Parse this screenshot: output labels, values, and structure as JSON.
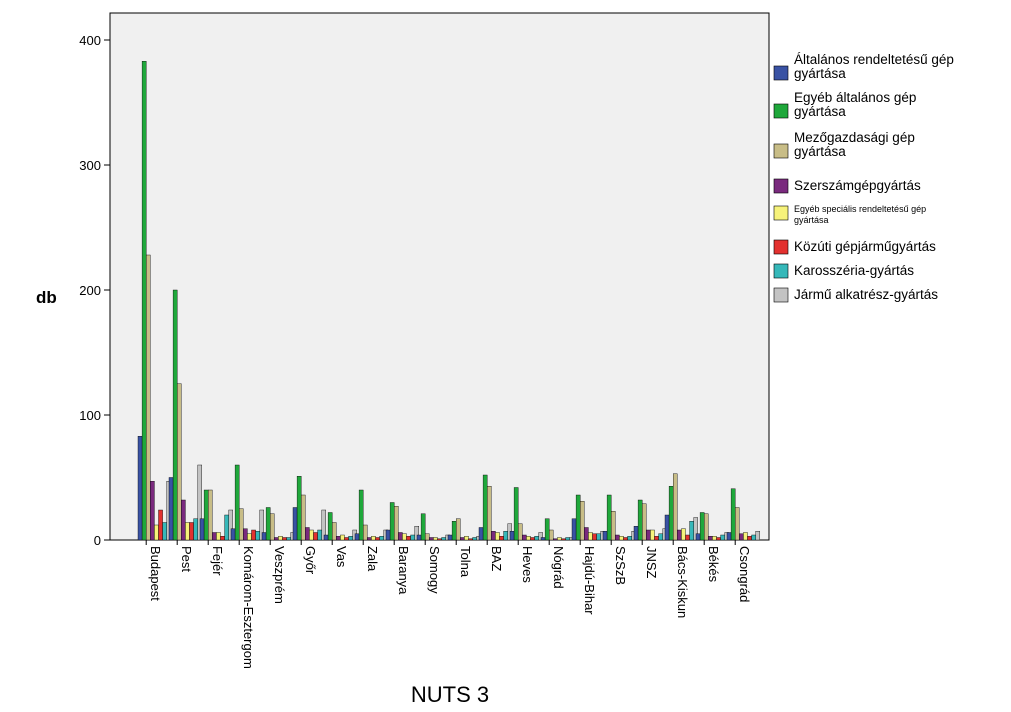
{
  "chart_data": {
    "type": "bar",
    "xlabel": "NUTS 3",
    "ylabel": "db",
    "ylim": [
      0,
      430
    ],
    "yticks": [
      0,
      100,
      200,
      300,
      400
    ],
    "grid": false,
    "legend_position": "right",
    "categories": [
      "Budapest",
      "Pest",
      "Fejér",
      "Komárom-Esztergom",
      "Veszprém",
      "Győr",
      "Vas",
      "Zala",
      "Baranya",
      "Somogy",
      "Tolna",
      "BAZ",
      "Heves",
      "Nógrád",
      "Hajdú-Bihar",
      "SzSzB",
      "JNSZ",
      "Bács-Kiskun",
      "Békés",
      "Csongrád"
    ],
    "series": [
      {
        "name": "Általános rendeltetésű gép gyártása",
        "color": "#3952a4",
        "values": [
          83,
          50,
          17,
          9,
          6,
          26,
          4,
          5,
          8,
          4,
          4,
          10,
          7,
          2,
          17,
          7,
          11,
          20,
          5,
          6
        ]
      },
      {
        "name": "Egyéb általános gép gyártása",
        "color": "#1fa83b",
        "values": [
          383,
          200,
          40,
          60,
          26,
          51,
          22,
          40,
          30,
          21,
          15,
          52,
          42,
          17,
          36,
          36,
          32,
          43,
          22,
          41
        ]
      },
      {
        "name": "Mezőgazdasági gép gyártása",
        "color": "#c8bd87",
        "values": [
          228,
          125,
          40,
          25,
          21,
          36,
          14,
          12,
          27,
          5,
          17,
          43,
          13,
          8,
          31,
          23,
          29,
          53,
          21,
          26
        ]
      },
      {
        "name": "Szerszámgépgyártás",
        "color": "#7a2a7e",
        "values": [
          47,
          32,
          6,
          9,
          2,
          10,
          3,
          2,
          6,
          2,
          2,
          7,
          4,
          1,
          10,
          4,
          8,
          8,
          3,
          5
        ]
      },
      {
        "name": "Egyéb speciális rendeltetésű gép gyártása",
        "color": "#f6f27a",
        "values": [
          12,
          14,
          6,
          5,
          3,
          8,
          4,
          3,
          5,
          2,
          3,
          6,
          3,
          2,
          6,
          3,
          8,
          9,
          3,
          6
        ]
      },
      {
        "name": "Közúti gépjárműgyártás",
        "color": "#e3312f",
        "values": [
          24,
          14,
          3,
          8,
          2,
          6,
          2,
          2,
          3,
          1,
          1,
          3,
          2,
          1,
          5,
          2,
          3,
          4,
          2,
          3
        ]
      },
      {
        "name": "Karosszéria-gyártás",
        "color": "#36b8b9",
        "values": [
          14,
          17,
          20,
          7,
          2,
          8,
          3,
          3,
          4,
          2,
          2,
          7,
          3,
          2,
          5,
          3,
          5,
          15,
          4,
          4
        ]
      },
      {
        "name": "Jármű alkatrész-gyártás",
        "color": "#c3c3c3",
        "values": [
          47,
          60,
          24,
          24,
          6,
          24,
          8,
          8,
          11,
          4,
          3,
          13,
          6,
          2,
          7,
          7,
          9,
          18,
          6,
          7
        ]
      }
    ]
  }
}
